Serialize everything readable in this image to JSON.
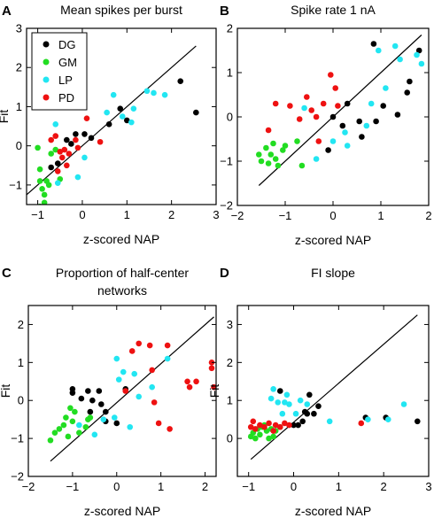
{
  "chart_data": [
    {
      "panel": "A",
      "type": "scatter",
      "title": "Mean  spikes per burst",
      "xlabel": "z-scored NAP",
      "ylabel": "Fit",
      "xlim": [
        -1.25,
        3
      ],
      "ylim": [
        -1.5,
        3
      ],
      "xticks": [
        -1,
        0,
        1,
        2,
        3
      ],
      "yticks": [
        -1,
        0,
        1,
        2,
        3
      ],
      "legend": "top-left",
      "diagonal": [
        [
          -1.25,
          -1.25
        ],
        [
          2.55,
          2.55
        ]
      ],
      "series": [
        {
          "name": "DG",
          "color": "#000000",
          "points": [
            [
              -0.7,
              -0.55
            ],
            [
              -0.55,
              -0.45
            ],
            [
              -0.35,
              0.15
            ],
            [
              -0.15,
              0.3
            ],
            [
              0.05,
              0.3
            ],
            [
              0.2,
              0.2
            ],
            [
              0.6,
              0.55
            ],
            [
              0.85,
              0.95
            ],
            [
              1.0,
              0.65
            ],
            [
              2.2,
              1.65
            ],
            [
              2.55,
              0.85
            ],
            [
              -0.25,
              0.05
            ]
          ]
        },
        {
          "name": "GM",
          "color": "#22dd22",
          "points": [
            [
              -1.0,
              -0.05
            ],
            [
              -0.95,
              -0.6
            ],
            [
              -0.95,
              -0.9
            ],
            [
              -0.9,
              -1.1
            ],
            [
              -0.85,
              -1.45
            ],
            [
              -0.95,
              -1.55
            ],
            [
              -0.8,
              -0.9
            ],
            [
              -0.75,
              -1.0
            ],
            [
              -0.7,
              -0.2
            ],
            [
              -0.6,
              -0.1
            ],
            [
              -0.85,
              -1.25
            ],
            [
              -0.5,
              -0.85
            ]
          ]
        },
        {
          "name": "LP",
          "color": "#22e6f2",
          "points": [
            [
              -0.6,
              0.55
            ],
            [
              -0.55,
              -0.95
            ],
            [
              -0.1,
              -0.8
            ],
            [
              0.55,
              0.85
            ],
            [
              0.7,
              1.3
            ],
            [
              0.9,
              0.75
            ],
            [
              1.1,
              0.6
            ],
            [
              1.45,
              1.4
            ],
            [
              1.6,
              1.35
            ],
            [
              1.85,
              1.3
            ],
            [
              1.15,
              0.95
            ],
            [
              0.05,
              -0.3
            ]
          ]
        },
        {
          "name": "PD",
          "color": "#ee1111",
          "points": [
            [
              -0.6,
              0.25
            ],
            [
              -0.5,
              -0.15
            ],
            [
              -0.45,
              -0.3
            ],
            [
              -0.35,
              -0.5
            ],
            [
              -0.55,
              -0.65
            ],
            [
              -0.3,
              -0.2
            ],
            [
              -0.1,
              -0.05
            ],
            [
              0.1,
              0.7
            ],
            [
              0.4,
              0.1
            ],
            [
              -0.7,
              0.15
            ],
            [
              -0.4,
              -0.1
            ],
            [
              -0.15,
              0.15
            ]
          ]
        }
      ]
    },
    {
      "panel": "B",
      "type": "scatter",
      "title": "Spike rate 1 nA",
      "xlabel": "z-scored NAP",
      "ylabel": "",
      "xlim": [
        -2,
        2
      ],
      "ylim": [
        -2,
        2
      ],
      "xticks": [
        -2,
        -1,
        0,
        1,
        2
      ],
      "yticks": [
        -2,
        -1,
        0,
        1,
        2
      ],
      "diagonal": [
        [
          -1.55,
          -1.55
        ],
        [
          1.85,
          1.85
        ]
      ],
      "series": [
        {
          "name": "DG",
          "points": [
            [
              -0.1,
              -0.75
            ],
            [
              0.0,
              0.0
            ],
            [
              0.2,
              -0.2
            ],
            [
              0.3,
              0.3
            ],
            [
              0.55,
              -0.1
            ],
            [
              0.6,
              -0.45
            ],
            [
              0.85,
              1.65
            ],
            [
              1.05,
              0.25
            ],
            [
              1.35,
              0.05
            ],
            [
              1.55,
              0.55
            ],
            [
              1.6,
              0.8
            ],
            [
              1.8,
              1.5
            ],
            [
              0.9,
              -0.1
            ]
          ]
        },
        {
          "name": "GM",
          "points": [
            [
              -1.55,
              -0.85
            ],
            [
              -1.5,
              -1.0
            ],
            [
              -1.35,
              -1.05
            ],
            [
              -1.3,
              -0.85
            ],
            [
              -1.25,
              -0.6
            ],
            [
              -1.2,
              -0.95
            ],
            [
              -1.15,
              -1.1
            ],
            [
              -1.05,
              -0.75
            ],
            [
              -1.0,
              -0.65
            ],
            [
              -0.75,
              -0.55
            ],
            [
              -0.65,
              -1.1
            ],
            [
              -1.4,
              -0.7
            ]
          ]
        },
        {
          "name": "LP",
          "points": [
            [
              -0.6,
              0.2
            ],
            [
              -0.35,
              -0.95
            ],
            [
              0.0,
              -0.55
            ],
            [
              0.25,
              -0.35
            ],
            [
              0.7,
              -0.2
            ],
            [
              0.8,
              0.3
            ],
            [
              0.95,
              1.5
            ],
            [
              1.1,
              0.65
            ],
            [
              1.3,
              1.6
            ],
            [
              1.4,
              1.3
            ],
            [
              1.75,
              1.4
            ],
            [
              1.85,
              1.2
            ],
            [
              0.3,
              -0.65
            ]
          ]
        },
        {
          "name": "PD",
          "points": [
            [
              -1.35,
              -0.3
            ],
            [
              -1.2,
              0.3
            ],
            [
              -0.9,
              0.25
            ],
            [
              -0.7,
              -0.05
            ],
            [
              -0.55,
              0.45
            ],
            [
              -0.45,
              0.15
            ],
            [
              -0.35,
              0.0
            ],
            [
              -0.2,
              0.3
            ],
            [
              -0.05,
              0.95
            ],
            [
              0.05,
              0.65
            ],
            [
              0.1,
              0.25
            ],
            [
              -0.3,
              -0.55
            ]
          ]
        }
      ]
    },
    {
      "panel": "C",
      "type": "scatter",
      "title": "Proportion of half-center networks",
      "title_lines": [
        "Proportion of half-center",
        "networks"
      ],
      "xlabel": "z-scored NAP",
      "ylabel": "Fit",
      "xlim": [
        -2,
        2.25
      ],
      "ylim": [
        -2,
        2.5
      ],
      "xticks": [
        -2,
        -1,
        0,
        1,
        2
      ],
      "yticks": [
        -2,
        -1,
        0,
        1,
        2
      ],
      "diagonal": [
        [
          -1.5,
          -1.6
        ],
        [
          2.2,
          2.2
        ]
      ],
      "series": [
        {
          "name": "DG",
          "points": [
            [
              -1.0,
              0.3
            ],
            [
              -1.0,
              0.2
            ],
            [
              -0.65,
              0.25
            ],
            [
              -0.55,
              0.0
            ],
            [
              -0.4,
              0.25
            ],
            [
              -0.35,
              -0.1
            ],
            [
              -0.25,
              -0.3
            ],
            [
              -0.25,
              -0.55
            ],
            [
              0.0,
              -0.6
            ],
            [
              0.2,
              0.3
            ],
            [
              -0.8,
              0.05
            ],
            [
              -0.6,
              -0.3
            ]
          ]
        },
        {
          "name": "GM",
          "points": [
            [
              -1.5,
              -1.05
            ],
            [
              -1.4,
              -0.85
            ],
            [
              -1.3,
              -0.75
            ],
            [
              -1.2,
              -0.65
            ],
            [
              -1.15,
              -0.45
            ],
            [
              -1.1,
              -0.95
            ],
            [
              -1.05,
              -0.2
            ],
            [
              -0.95,
              -0.3
            ],
            [
              -0.85,
              -0.85
            ],
            [
              -0.7,
              -0.7
            ],
            [
              -0.65,
              -0.5
            ],
            [
              -0.6,
              -0.45
            ],
            [
              -1.0,
              -0.55
            ]
          ]
        },
        {
          "name": "LP",
          "points": [
            [
              -0.85,
              -0.65
            ],
            [
              -0.5,
              -0.9
            ],
            [
              -0.3,
              -0.5
            ],
            [
              -0.05,
              -0.45
            ],
            [
              0.0,
              1.1
            ],
            [
              0.05,
              0.55
            ],
            [
              0.15,
              0.75
            ],
            [
              0.4,
              0.7
            ],
            [
              0.5,
              0.1
            ],
            [
              0.8,
              0.35
            ],
            [
              1.15,
              1.1
            ],
            [
              0.3,
              -0.7
            ]
          ]
        },
        {
          "name": "PD",
          "points": [
            [
              0.2,
              0.25
            ],
            [
              0.35,
              1.3
            ],
            [
              0.5,
              1.5
            ],
            [
              0.75,
              1.45
            ],
            [
              0.8,
              0.8
            ],
            [
              0.85,
              -0.05
            ],
            [
              0.95,
              -0.6
            ],
            [
              1.2,
              -0.75
            ],
            [
              1.6,
              0.5
            ],
            [
              1.65,
              0.35
            ],
            [
              1.8,
              0.5
            ],
            [
              2.15,
              1.0
            ],
            [
              2.2,
              0.35
            ],
            [
              2.15,
              0.85
            ],
            [
              1.15,
              1.45
            ]
          ]
        }
      ]
    },
    {
      "panel": "D",
      "type": "scatter",
      "title": "FI slope",
      "xlabel": "z-scored NAP",
      "ylabel": "Fit",
      "xlim": [
        -1.25,
        3
      ],
      "ylim": [
        -1,
        3.5
      ],
      "xticks": [
        -1,
        0,
        1,
        2,
        3
      ],
      "yticks": [
        0,
        1,
        2,
        3
      ],
      "diagonal": [
        [
          -0.95,
          -0.55
        ],
        [
          2.75,
          3.25
        ]
      ],
      "series": [
        {
          "name": "DG",
          "points": [
            [
              -0.3,
              1.25
            ],
            [
              0.0,
              0.35
            ],
            [
              0.1,
              0.35
            ],
            [
              0.2,
              0.45
            ],
            [
              0.25,
              0.7
            ],
            [
              0.3,
              0.65
            ],
            [
              0.35,
              1.15
            ],
            [
              0.45,
              0.65
            ],
            [
              0.55,
              0.85
            ],
            [
              1.6,
              0.55
            ],
            [
              2.05,
              0.55
            ],
            [
              2.75,
              0.45
            ]
          ]
        },
        {
          "name": "GM",
          "points": [
            [
              -0.95,
              0.05
            ],
            [
              -0.9,
              0.15
            ],
            [
              -0.85,
              0.0
            ],
            [
              -0.8,
              0.25
            ],
            [
              -0.75,
              0.1
            ],
            [
              -0.7,
              0.3
            ],
            [
              -0.6,
              0.2
            ],
            [
              -0.55,
              0.0
            ],
            [
              -0.5,
              0.25
            ],
            [
              -0.45,
              0.05
            ],
            [
              -0.4,
              0.2
            ],
            [
              -0.3,
              0.3
            ],
            [
              -0.65,
              0.35
            ]
          ]
        },
        {
          "name": "LP",
          "points": [
            [
              -0.5,
              1.05
            ],
            [
              -0.45,
              1.3
            ],
            [
              -0.35,
              0.95
            ],
            [
              -0.25,
              0.65
            ],
            [
              -0.2,
              0.95
            ],
            [
              -0.1,
              0.9
            ],
            [
              0.05,
              0.65
            ],
            [
              0.15,
              1.0
            ],
            [
              0.3,
              0.9
            ],
            [
              0.8,
              0.45
            ],
            [
              1.65,
              0.5
            ],
            [
              2.45,
              0.9
            ],
            [
              2.1,
              0.5
            ],
            [
              -0.15,
              1.15
            ]
          ]
        },
        {
          "name": "PD",
          "points": [
            [
              -0.95,
              0.3
            ],
            [
              -0.85,
              0.25
            ],
            [
              -0.75,
              0.35
            ],
            [
              -0.65,
              0.3
            ],
            [
              -0.55,
              0.4
            ],
            [
              -0.4,
              0.35
            ],
            [
              -0.3,
              0.3
            ],
            [
              -0.2,
              0.4
            ],
            [
              1.5,
              0.4
            ],
            [
              -0.9,
              0.45
            ],
            [
              -0.45,
              0.2
            ],
            [
              -0.1,
              0.35
            ]
          ]
        }
      ]
    }
  ],
  "panel_letters": [
    "A",
    "B",
    "C",
    "D"
  ],
  "legend": {
    "entries": [
      {
        "label": "DG",
        "color": "#000000"
      },
      {
        "label": "GM",
        "color": "#22dd22"
      },
      {
        "label": "LP",
        "color": "#22e6f2"
      },
      {
        "label": "PD",
        "color": "#ee1111"
      }
    ]
  }
}
